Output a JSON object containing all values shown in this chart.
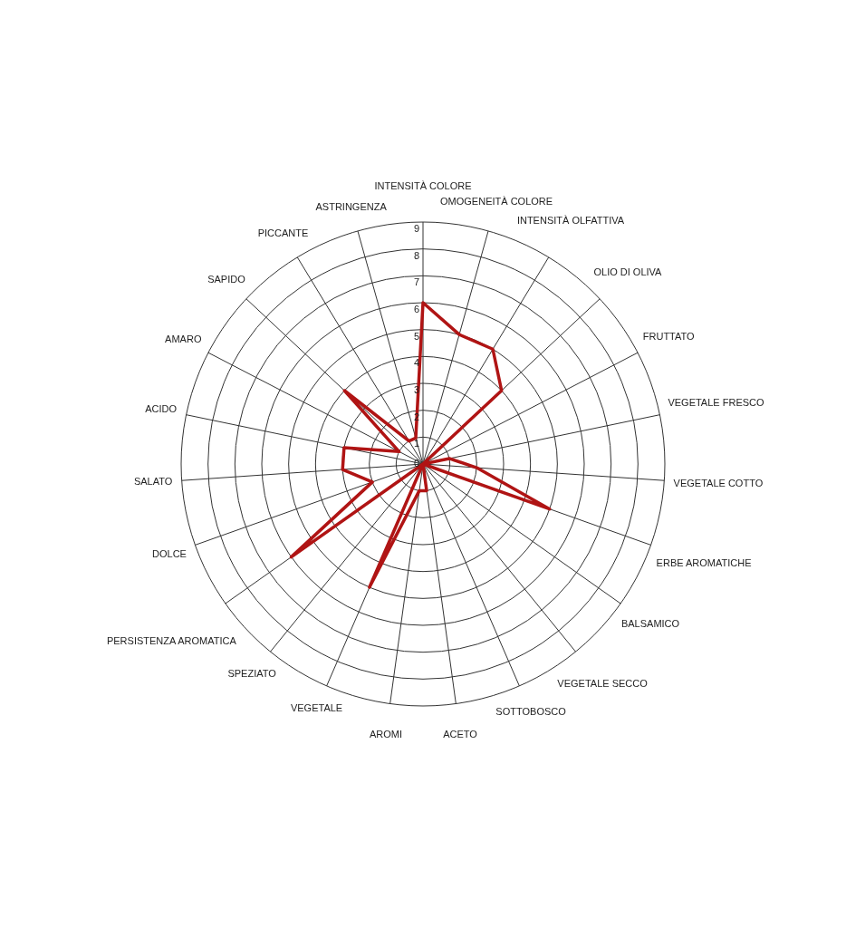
{
  "chart_data": {
    "type": "radar",
    "categories": [
      "INTENSITÀ COLORE",
      "OMOGENEITÀ COLORE",
      "INTENSITÀ OLFATTIVA",
      "OLIO DI OLIVA",
      "FRUTTATO",
      "VEGETALE FRESCO",
      "VEGETALE COTTO",
      "ERBE AROMATICHE",
      "BALSAMICO",
      "VEGETALE SECCO",
      "SOTTOBOSCO",
      "ACETO",
      "AROMI",
      "VEGETALE",
      "SPEZIATO",
      "PERSISTENZA AROMATICA",
      "DOLCE",
      "SALATO",
      "ACIDO",
      "AMARO",
      "SAPIDO",
      "PICCANTE",
      "ASTRINGENZA"
    ],
    "series": [
      {
        "color": "#b01414",
        "values": [
          6,
          5,
          5,
          4,
          0,
          1,
          2,
          5,
          0,
          0,
          0,
          1,
          1,
          5,
          0,
          6,
          2,
          3,
          3,
          1,
          4,
          1,
          1
        ]
      }
    ],
    "ylim": [
      0,
      9
    ],
    "yticks": [
      0,
      1,
      2,
      3,
      4,
      5,
      6,
      7,
      8,
      9
    ],
    "grid": true,
    "legend": false,
    "marker": "none",
    "line_style": "solid"
  }
}
